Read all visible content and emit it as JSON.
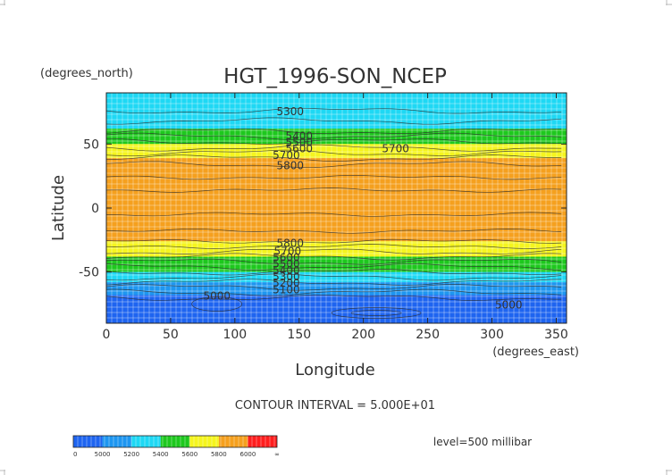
{
  "chart_data": {
    "type": "heatmap",
    "title": "HGT_1996-SON_NCEP",
    "y_units": "(degrees_north)",
    "x_units": "(degrees_east)",
    "xlabel": "Longitude",
    "ylabel": "Latitude",
    "xlim": [
      0,
      358
    ],
    "ylim": [
      -90,
      90
    ],
    "x_ticks": [
      "0",
      "50",
      "100",
      "150",
      "200",
      "250",
      "300",
      "350"
    ],
    "x_tick_values": [
      0,
      50,
      100,
      150,
      200,
      250,
      300,
      350
    ],
    "y_ticks": [
      "50",
      "0",
      "-50"
    ],
    "y_tick_values": [
      50,
      0,
      -50
    ],
    "grid": true,
    "contour_interval_text": "CONTOUR INTERVAL = 5.000E+01",
    "level_text": "level=500 millibar",
    "bands": [
      {
        "lat_from": 90,
        "lat_to": 62,
        "value_range": "5200-5400",
        "color": "#1ed8f4"
      },
      {
        "lat_from": 62,
        "lat_to": 50,
        "value_range": "5400-5600",
        "color": "#1ec81e"
      },
      {
        "lat_from": 50,
        "lat_to": 39,
        "value_range": "5600-5800",
        "color": "#f5f51e"
      },
      {
        "lat_from": 39,
        "lat_to": -26,
        "value_range": "5800-6000",
        "color": "#f5a01e"
      },
      {
        "lat_from": -26,
        "lat_to": -38,
        "value_range": "5600-5800",
        "color": "#f5f51e"
      },
      {
        "lat_from": -38,
        "lat_to": -50,
        "value_range": "5400-5600",
        "color": "#1ec81e"
      },
      {
        "lat_from": -50,
        "lat_to": -58,
        "value_range": "5200-5400",
        "color": "#1ed8f4"
      },
      {
        "lat_from": -58,
        "lat_to": -68,
        "value_range": "5000-5200",
        "color": "#1e96f0"
      },
      {
        "lat_from": -68,
        "lat_to": -90,
        "value_range": "0-5000",
        "color": "#1e64f0"
      }
    ],
    "contour_labels": [
      {
        "text": "5300",
        "lon": 143,
        "lat": 76
      },
      {
        "text": "5400",
        "lon": 150,
        "lat": 57
      },
      {
        "text": "5500",
        "lon": 150,
        "lat": 52
      },
      {
        "text": "5600",
        "lon": 150,
        "lat": 47
      },
      {
        "text": "5700",
        "lon": 140,
        "lat": 42
      },
      {
        "text": "5800",
        "lon": 143,
        "lat": 34
      },
      {
        "text": "5700",
        "lon": 225,
        "lat": 47
      },
      {
        "text": "5800",
        "lon": 143,
        "lat": -27
      },
      {
        "text": "5700",
        "lon": 141,
        "lat": -33
      },
      {
        "text": "5600",
        "lon": 140,
        "lat": -38
      },
      {
        "text": "5500",
        "lon": 140,
        "lat": -43
      },
      {
        "text": "5400",
        "lon": 140,
        "lat": -48
      },
      {
        "text": "5300",
        "lon": 140,
        "lat": -53
      },
      {
        "text": "5200",
        "lon": 140,
        "lat": -58
      },
      {
        "text": "5100",
        "lon": 140,
        "lat": -63
      },
      {
        "text": "5000",
        "lon": 86,
        "lat": -68
      },
      {
        "text": "5000",
        "lon": 313,
        "lat": -75
      }
    ],
    "colorbar": {
      "colors": [
        "#1e64f0",
        "#1e96f0",
        "#1ed8f4",
        "#1ec81e",
        "#f5f51e",
        "#f5a01e",
        "#ff1e1e"
      ],
      "labels": [
        "0",
        "5000",
        "5200",
        "5400",
        "5600",
        "5800",
        "6000",
        "∞"
      ]
    }
  }
}
